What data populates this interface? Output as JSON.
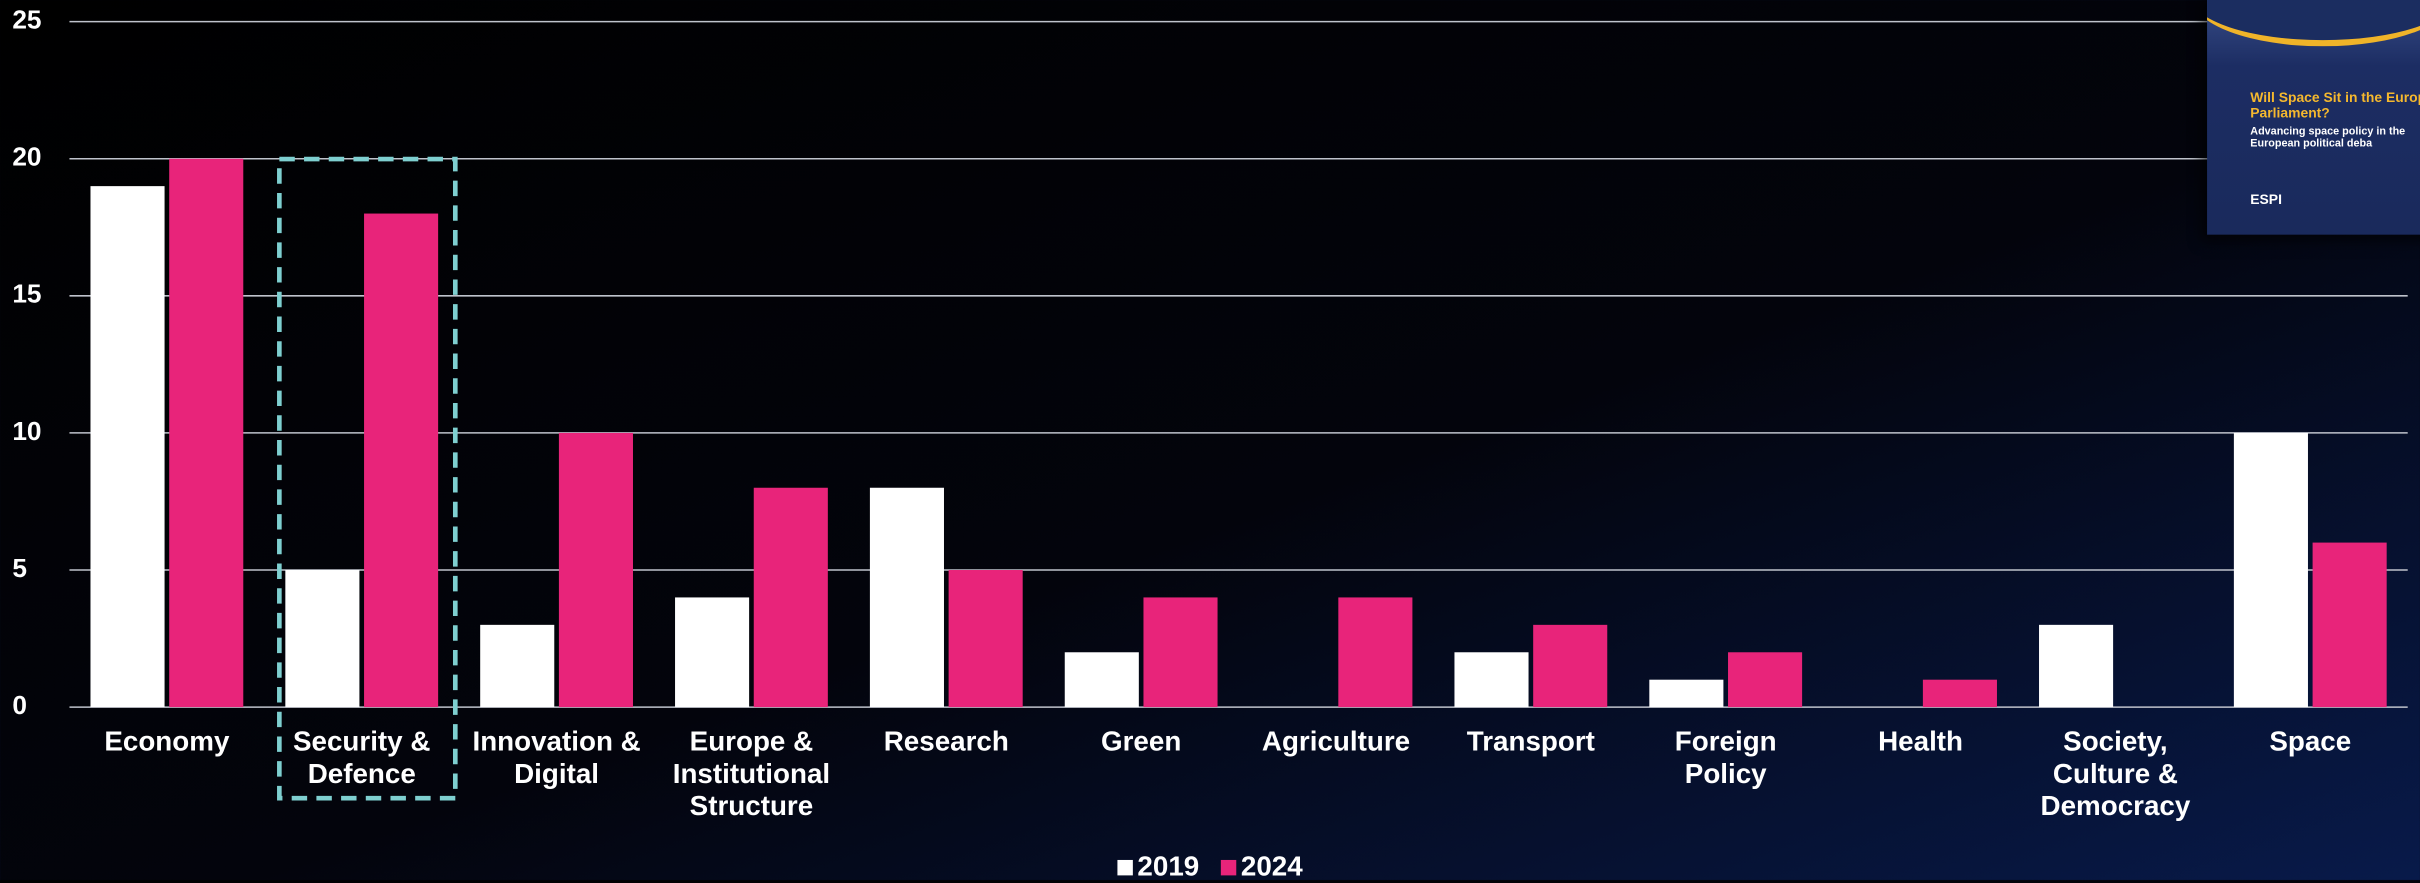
{
  "chart_data": {
    "type": "bar",
    "categories": [
      "Economy",
      "Security & Defence",
      "Innovation & Digital",
      "Europe & Institutional Structure",
      "Research",
      "Green",
      "Agriculture",
      "Transport",
      "Foreign Policy",
      "Health",
      "Society, Culture & Democracy",
      "Space"
    ],
    "series": [
      {
        "name": "2019",
        "color": "#ffffff",
        "values": [
          19,
          5,
          3,
          4,
          8,
          2,
          0,
          2,
          1,
          0,
          3,
          10
        ]
      },
      {
        "name": "2024",
        "color": "#e8247a",
        "values": [
          20,
          18,
          10,
          8,
          5,
          4,
          4,
          3,
          2,
          1,
          0,
          6
        ]
      }
    ],
    "ylim": [
      0,
      25
    ],
    "yticks": [
      0,
      5,
      10,
      15,
      20,
      25
    ],
    "grid": true
  },
  "cover": {
    "title": "Will Space Sit in the European Parliament?",
    "subtitle": "Advancing space policy in the European political deba",
    "logo": "ESPI"
  }
}
